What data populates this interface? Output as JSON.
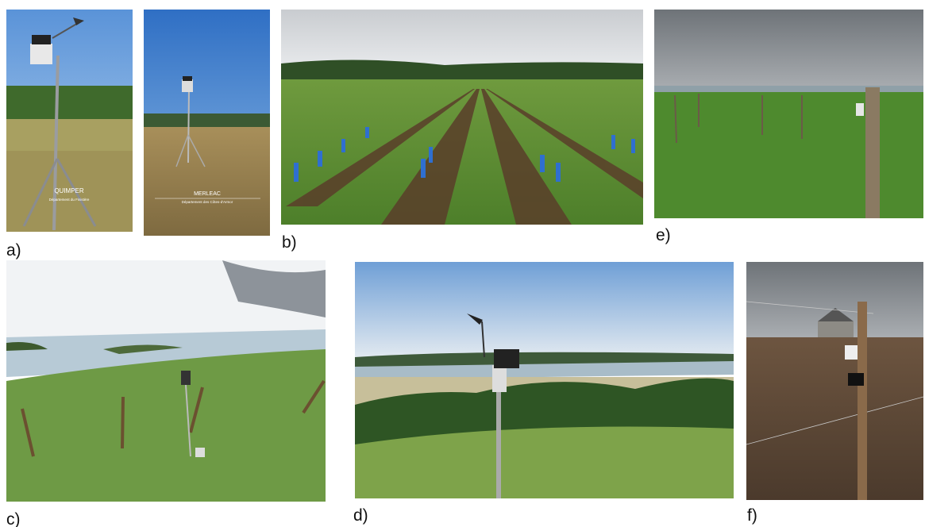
{
  "labels": [
    "a)",
    "b)",
    "c)",
    "d)",
    "e)",
    "f)"
  ],
  "signs": [
    {
      "title": "QUIMPER",
      "subtitle": "Département du Finistère"
    },
    {
      "title": "MERLEAC",
      "subtitle": "Département des Côtes-d'Armor"
    }
  ]
}
